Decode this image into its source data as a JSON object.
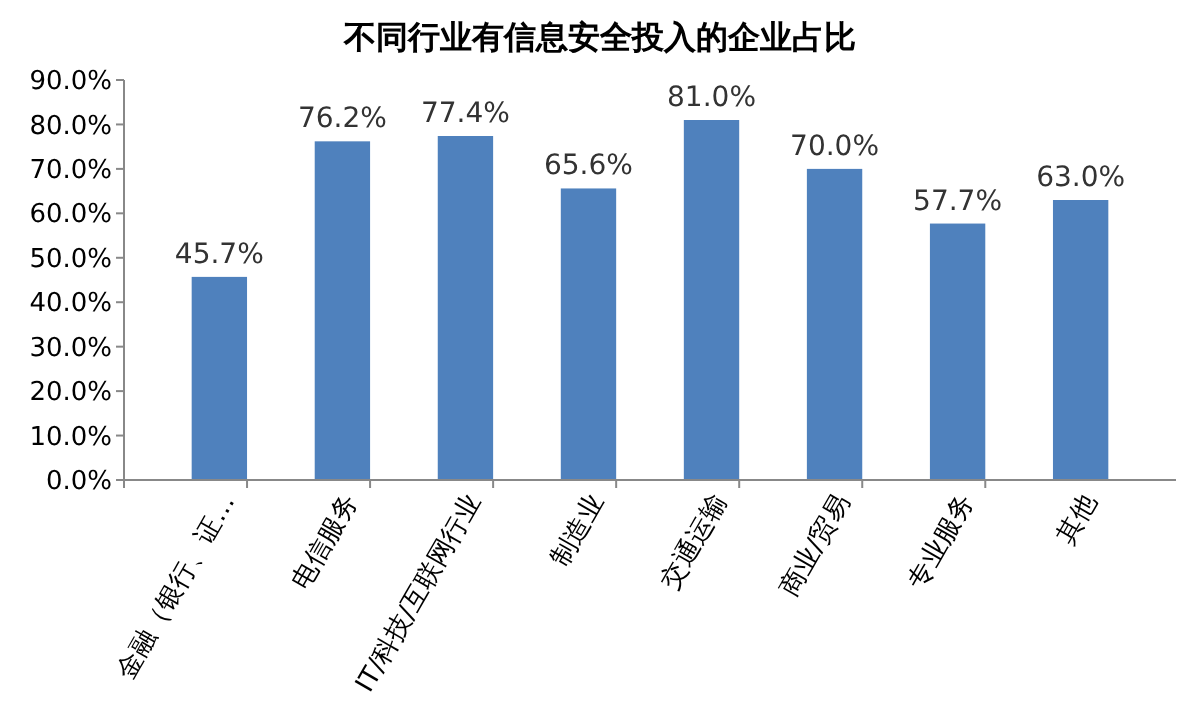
{
  "chart_data": {
    "type": "bar",
    "title": "不同行业有信息安全投入的企业占比",
    "categories": [
      "金融（银行、证…",
      "电信服务",
      "IT/科技/互联网行业",
      "制造业",
      "交通运输",
      "商业/贸易",
      "专业服务",
      "其他"
    ],
    "values": [
      45.7,
      76.2,
      77.4,
      65.6,
      81.0,
      70.0,
      57.7,
      63.0
    ],
    "value_labels": [
      "45.7%",
      "76.2%",
      "77.4%",
      "65.6%",
      "81.0%",
      "70.0%",
      "57.7%",
      "63.0%"
    ],
    "color": "#4f81bd",
    "ylim": [
      0,
      90
    ],
    "yticks": [
      {
        "value": 0,
        "label": "0.0%"
      },
      {
        "value": 10,
        "label": "10.0%"
      },
      {
        "value": 20,
        "label": "20.0%"
      },
      {
        "value": 30,
        "label": "30.0%"
      },
      {
        "value": 40,
        "label": "40.0%"
      },
      {
        "value": 50,
        "label": "50.0%"
      },
      {
        "value": 60,
        "label": "60.0%"
      },
      {
        "value": 70,
        "label": "70.0%"
      },
      {
        "value": 80,
        "label": "80.0%"
      },
      {
        "value": 90,
        "label": "90.0%"
      }
    ],
    "grid": false
  }
}
